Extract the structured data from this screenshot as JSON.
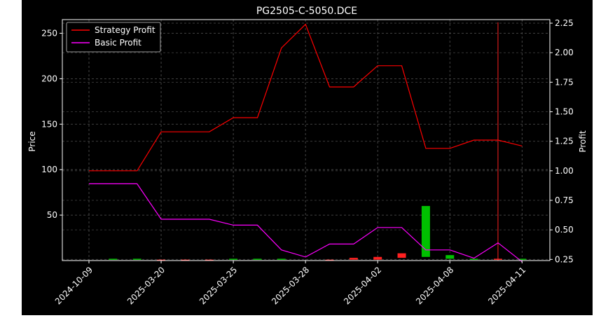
{
  "chart_data": {
    "type": "line",
    "title": "PG2505-C-5050.DCE",
    "ylabel_left": "Price",
    "ylabel_right": "Profit",
    "x_tick_labels": [
      "2024-10-09",
      "2025-03-20",
      "2025-03-25",
      "2025-03-28",
      "2025-04-02",
      "2025-04-08",
      "2025-04-11"
    ],
    "y_left_ticks": [
      50,
      100,
      150,
      200,
      250
    ],
    "y_right_ticks": [
      "0.25",
      "0.50",
      "0.75",
      "1.00",
      "1.25",
      "1.50",
      "1.75",
      "2.00",
      "2.25"
    ],
    "ylim_left": [
      0,
      265
    ],
    "ylim_right": [
      0.24,
      2.28
    ],
    "grid": true,
    "legend_placement": "top-left",
    "x_points": 19,
    "series": [
      {
        "name": "Strategy Profit",
        "axis": "right",
        "color": "#ff0000",
        "values": [
          1.0,
          1.0,
          1.0,
          1.33,
          1.33,
          1.33,
          1.45,
          1.45,
          2.04,
          2.24,
          1.71,
          1.71,
          1.89,
          1.89,
          1.19,
          1.19,
          1.26,
          1.26,
          1.21
        ]
      },
      {
        "name": "Basic Profit",
        "axis": "right",
        "color": "#ff00ff",
        "values": [
          0.89,
          0.89,
          0.89,
          0.59,
          0.59,
          0.59,
          0.54,
          0.54,
          0.33,
          0.27,
          0.38,
          0.38,
          0.52,
          0.52,
          0.33,
          0.33,
          0.26,
          0.39,
          0.23
        ]
      }
    ],
    "candles": [
      {
        "i": 1,
        "open": 1,
        "close": 2,
        "color": "#00c000"
      },
      {
        "i": 2,
        "open": 1,
        "close": 2,
        "color": "#00c000"
      },
      {
        "i": 3,
        "open": 1,
        "close": 1,
        "color": "#ff2020"
      },
      {
        "i": 4,
        "open": 1,
        "close": 1,
        "color": "#ff2020"
      },
      {
        "i": 5,
        "open": 1,
        "close": 1,
        "color": "#ff2020"
      },
      {
        "i": 6,
        "open": 1,
        "close": 2,
        "color": "#00c000"
      },
      {
        "i": 7,
        "open": 1,
        "close": 2,
        "color": "#00c000"
      },
      {
        "i": 8,
        "open": 1,
        "close": 2,
        "color": "#00c000"
      },
      {
        "i": 10,
        "open": 1,
        "close": 1,
        "color": "#ff2020"
      },
      {
        "i": 11,
        "open": 1,
        "close": 3,
        "color": "#ff2020"
      },
      {
        "i": 12,
        "open": 1,
        "close": 4,
        "color": "#ff2020"
      },
      {
        "i": 13,
        "open": 3,
        "close": 8,
        "color": "#ff2020"
      },
      {
        "i": 14,
        "open": 4,
        "close": 60,
        "color": "#00c000"
      },
      {
        "i": 15,
        "open": 2,
        "close": 6,
        "color": "#00c000"
      },
      {
        "i": 16,
        "open": 1,
        "close": 2,
        "color": "#00c000"
      },
      {
        "i": 17,
        "open": 1,
        "close": 2,
        "color": "#ff2020",
        "high": 262,
        "low": 0
      },
      {
        "i": 18,
        "open": 1,
        "close": 2,
        "color": "#00c000"
      }
    ]
  }
}
